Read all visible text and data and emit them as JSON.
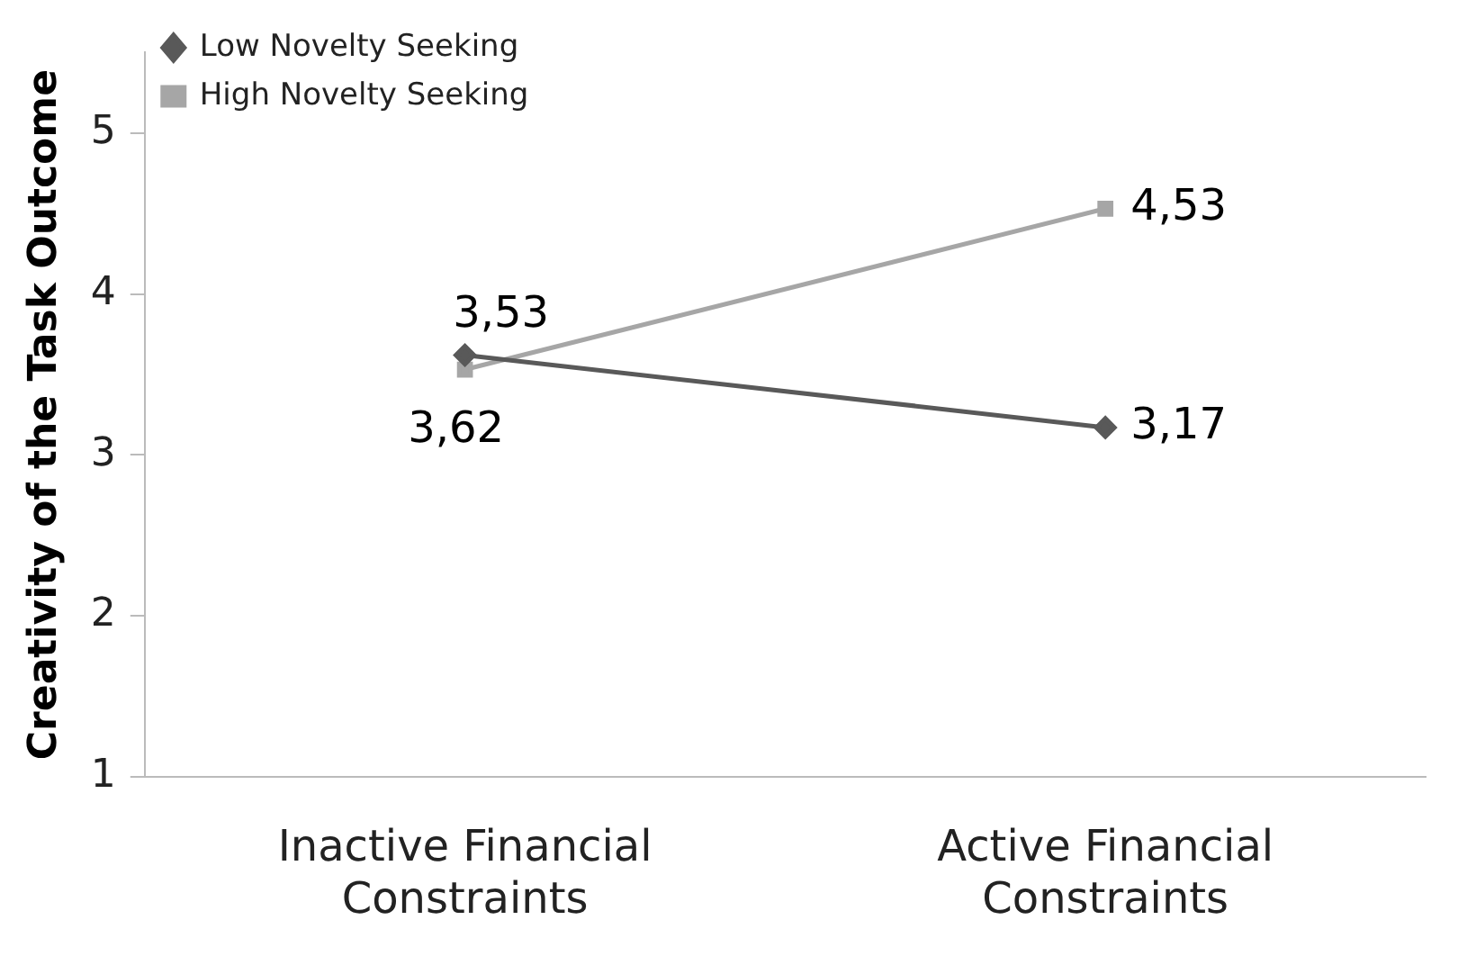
{
  "chart_data": {
    "type": "line",
    "ylabel": "Creativity of the Task Outcome",
    "categories": [
      "Inactive Financial Constraints",
      "Active Financial Constraints"
    ],
    "series": [
      {
        "name": "Low Novelty Seeking",
        "color": "#595959",
        "marker": "diamond",
        "values": [
          3.62,
          3.17
        ],
        "value_labels": [
          "3,62",
          "3,17"
        ]
      },
      {
        "name": "High Novelty Seeking",
        "color": "#a6a6a6",
        "marker": "square",
        "values": [
          3.53,
          4.53
        ],
        "value_labels": [
          "3,53",
          "4,53"
        ]
      }
    ],
    "ylim": [
      1,
      5.5
    ],
    "yticks": [
      1,
      2,
      3,
      4,
      5
    ],
    "grid": false,
    "legend": "top left"
  }
}
